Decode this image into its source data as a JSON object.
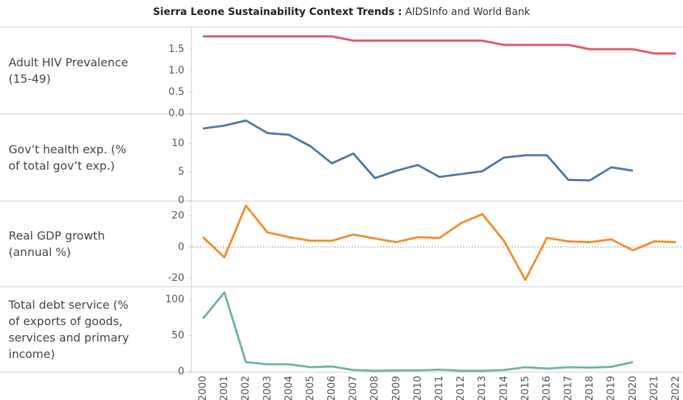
{
  "title": "Sierra Leone Sustainability Context Trends :",
  "subtitle": "AIDSInfo and World Bank",
  "chart_data": [
    {
      "type": "line",
      "title": "Adult HIV Prevalence (15-49)",
      "categories": [
        "2000",
        "2001",
        "2002",
        "2003",
        "2004",
        "2005",
        "2006",
        "2007",
        "2008",
        "2009",
        "2010",
        "2011",
        "2012",
        "2013",
        "2014",
        "2015",
        "2016",
        "2017",
        "2018",
        "2019",
        "2020",
        "2021",
        "2022"
      ],
      "series": [
        {
          "name": "Adult HIV Prevalence (15-49)",
          "color": "#e15759",
          "values": [
            1.8,
            1.8,
            1.8,
            1.8,
            1.8,
            1.8,
            1.8,
            1.7,
            1.7,
            1.7,
            1.7,
            1.7,
            1.7,
            1.7,
            1.6,
            1.6,
            1.6,
            1.6,
            1.5,
            1.5,
            1.5,
            1.4,
            1.4
          ]
        }
      ],
      "ylim": [
        0,
        2
      ],
      "yticks": [
        {
          "value": 0,
          "label": "0.0"
        },
        0.5,
        {
          "value": 1,
          "label": "1.0"
        },
        1.5
      ],
      "zero_line": false
    },
    {
      "type": "line",
      "title": "Gov’t health exp. (% of total gov’t exp.)",
      "categories": [
        "2000",
        "2001",
        "2002",
        "2003",
        "2004",
        "2005",
        "2006",
        "2007",
        "2008",
        "2009",
        "2010",
        "2011",
        "2012",
        "2013",
        "2014",
        "2015",
        "2016",
        "2017",
        "2018",
        "2019",
        "2020",
        "2021",
        "2022"
      ],
      "series": [
        {
          "name": "Gov’t health exp. (% of total gov’t exp.)",
          "color": "#4e79a7",
          "values": [
            12.6,
            13.1,
            14.0,
            11.8,
            11.5,
            9.5,
            6.5,
            8.2,
            3.9,
            5.2,
            6.2,
            4.1,
            4.6,
            5.1,
            7.5,
            7.9,
            7.9,
            3.6,
            3.5,
            5.8,
            5.2,
            null,
            null
          ]
        }
      ],
      "ylim": [
        0,
        15
      ],
      "yticks": [
        0,
        5,
        10
      ],
      "zero_line": false
    },
    {
      "type": "line",
      "title": "Real GDP growth (annual %)",
      "categories": [
        "2000",
        "2001",
        "2002",
        "2003",
        "2004",
        "2005",
        "2006",
        "2007",
        "2008",
        "2009",
        "2010",
        "2011",
        "2012",
        "2013",
        "2014",
        "2015",
        "2016",
        "2017",
        "2018",
        "2019",
        "2020",
        "2021",
        "2022"
      ],
      "series": [
        {
          "name": "Real GDP growth (annual %)",
          "color": "#f28e2b",
          "values": [
            6.3,
            -6.7,
            26.5,
            9.4,
            6.3,
            4.0,
            4.0,
            8.0,
            5.4,
            3.1,
            6.3,
            5.8,
            15.2,
            21.1,
            4.0,
            -21.1,
            5.8,
            3.6,
            3.1,
            4.9,
            -2.2,
            3.6,
            3.1
          ]
        }
      ],
      "ylim": [
        -25,
        29
      ],
      "yticks": [
        -20,
        0,
        20
      ],
      "zero_line": true
    },
    {
      "type": "line",
      "title": "Total debt service (% of exports of goods, services and primary income)",
      "categories": [
        "2000",
        "2001",
        "2002",
        "2003",
        "2004",
        "2005",
        "2006",
        "2007",
        "2008",
        "2009",
        "2010",
        "2011",
        "2012",
        "2013",
        "2014",
        "2015",
        "2016",
        "2017",
        "2018",
        "2019",
        "2020",
        "2021",
        "2022"
      ],
      "series": [
        {
          "name": "Total debt service (% of exports of goods, services and primary income)",
          "color": "#6fb3a8",
          "values": [
            73.5,
            110,
            13,
            10,
            10,
            6,
            7,
            2,
            1,
            1.5,
            1.5,
            2.5,
            1,
            1,
            2,
            6,
            4,
            6,
            5.5,
            6.5,
            13,
            null,
            null
          ]
        }
      ],
      "ylim": [
        0,
        117
      ],
      "yticks": [
        0,
        50,
        100
      ],
      "zero_line": false
    }
  ]
}
